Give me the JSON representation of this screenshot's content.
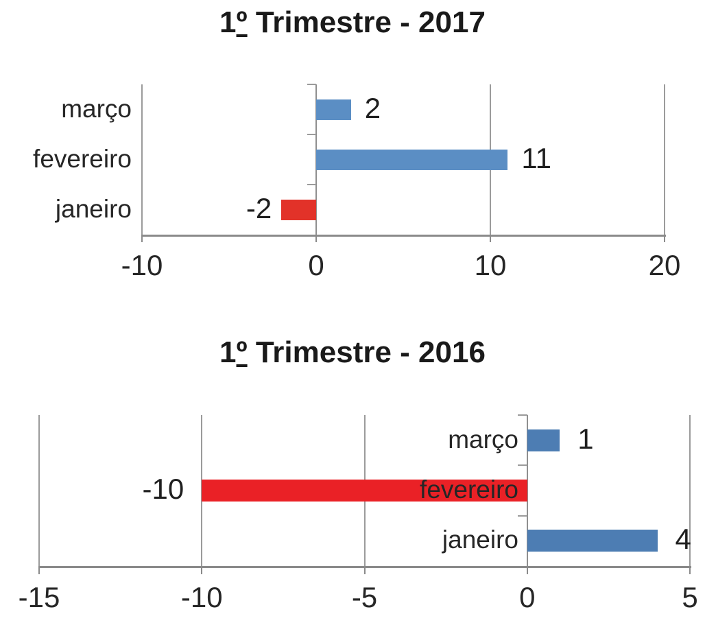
{
  "chart_data": [
    {
      "type": "bar",
      "orientation": "horizontal",
      "title": "1º Trimestre - 2017",
      "categories": [
        "março",
        "fevereiro",
        "janeiro"
      ],
      "values": [
        2,
        11,
        -2
      ],
      "data_labels": [
        "2",
        "11",
        "-2"
      ],
      "bar_colors": [
        "#5b8ec4",
        "#5b8ec4",
        "#e23229"
      ],
      "x_ticks": [
        -10,
        0,
        10,
        20
      ],
      "x_tick_labels": [
        "-10",
        "0",
        "10",
        "20"
      ],
      "xlim": [
        -10,
        20
      ],
      "xlabel": "",
      "ylabel": "",
      "grid": true,
      "legend": false
    },
    {
      "type": "bar",
      "orientation": "horizontal",
      "title": "1º Trimestre - 2016",
      "categories": [
        "março",
        "fevereiro",
        "janeiro"
      ],
      "values": [
        1,
        -10,
        4
      ],
      "data_labels": [
        "1",
        "-10",
        "4"
      ],
      "bar_colors": [
        "#4d7db3",
        "#ea2126",
        "#4d7db3"
      ],
      "x_ticks": [
        -15,
        -10,
        -5,
        0,
        5
      ],
      "x_tick_labels": [
        "-15",
        "-10",
        "-5",
        "0",
        "5"
      ],
      "xlim": [
        -15,
        5
      ],
      "xlabel": "",
      "ylabel": "",
      "grid": true,
      "legend": false
    }
  ],
  "colors": {
    "positive_bar_2017": "#5b8ec4",
    "negative_bar_2017": "#e23229",
    "positive_bar_2016": "#4d7db3",
    "negative_bar_2016": "#ea2126",
    "gridline": "#9b9b9b",
    "axis": "#8a8a8a",
    "text": "#262626",
    "title": "#1a1a1a",
    "background": "#ffffff"
  }
}
